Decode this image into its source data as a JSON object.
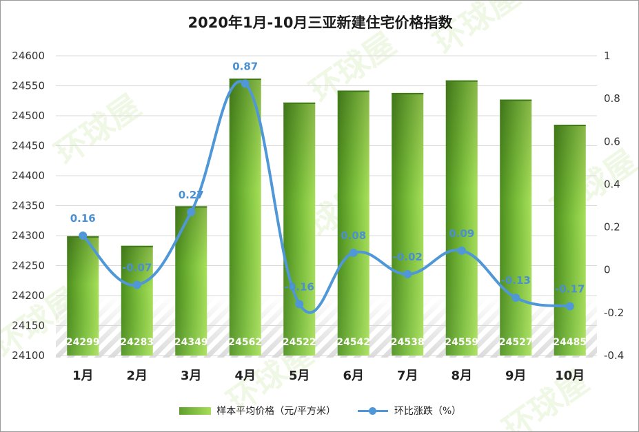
{
  "chart_data": {
    "type": "bar",
    "title": "2020年1月-10月三亚新建住宅价格指数",
    "categories": [
      "1月",
      "2月",
      "3月",
      "4月",
      "5月",
      "6月",
      "7月",
      "8月",
      "9月",
      "10月"
    ],
    "y_left": {
      "min": 24100,
      "max": 24600,
      "step": 50,
      "ticks": [
        "24100",
        "24150",
        "24200",
        "24250",
        "24300",
        "24350",
        "24400",
        "24450",
        "24500",
        "24550",
        "24600"
      ]
    },
    "y_right": {
      "min": -0.4,
      "max": 1,
      "step": 0.2,
      "ticks": [
        "-0.4",
        "-0.2",
        "0",
        "0.2",
        "0.4",
        "0.6",
        "0.8",
        "1"
      ]
    },
    "series": [
      {
        "name": "样本平均价格（元/平方米）",
        "kind": "bar",
        "axis": "left",
        "values": [
          24299,
          24283,
          24349,
          24562,
          24522,
          24542,
          24538,
          24559,
          24527,
          24485
        ],
        "labels": [
          "24299",
          "24283",
          "24349",
          "24562",
          "24522",
          "24542",
          "24538",
          "24559",
          "24527",
          "24485"
        ]
      },
      {
        "name": "环比涨跌（%）",
        "kind": "line",
        "axis": "right",
        "smooth": true,
        "values": [
          0.16,
          -0.07,
          0.27,
          0.87,
          -0.16,
          0.08,
          -0.02,
          0.09,
          -0.13,
          -0.17
        ],
        "labels": [
          "0.16",
          "-0.07",
          "0.27",
          "0.87",
          "-0.16",
          "0.08",
          "-0.02",
          "0.09",
          "-0.13",
          "-0.17"
        ]
      }
    ],
    "legend_position": "bottom",
    "grid": true
  },
  "watermark": "环球屋",
  "colors": {
    "bar_dark": "#4d8f1e",
    "bar_light": "#a8e05a",
    "line": "#4f97d6",
    "label": "#4a90d0",
    "grid": "#d8d8d8"
  }
}
